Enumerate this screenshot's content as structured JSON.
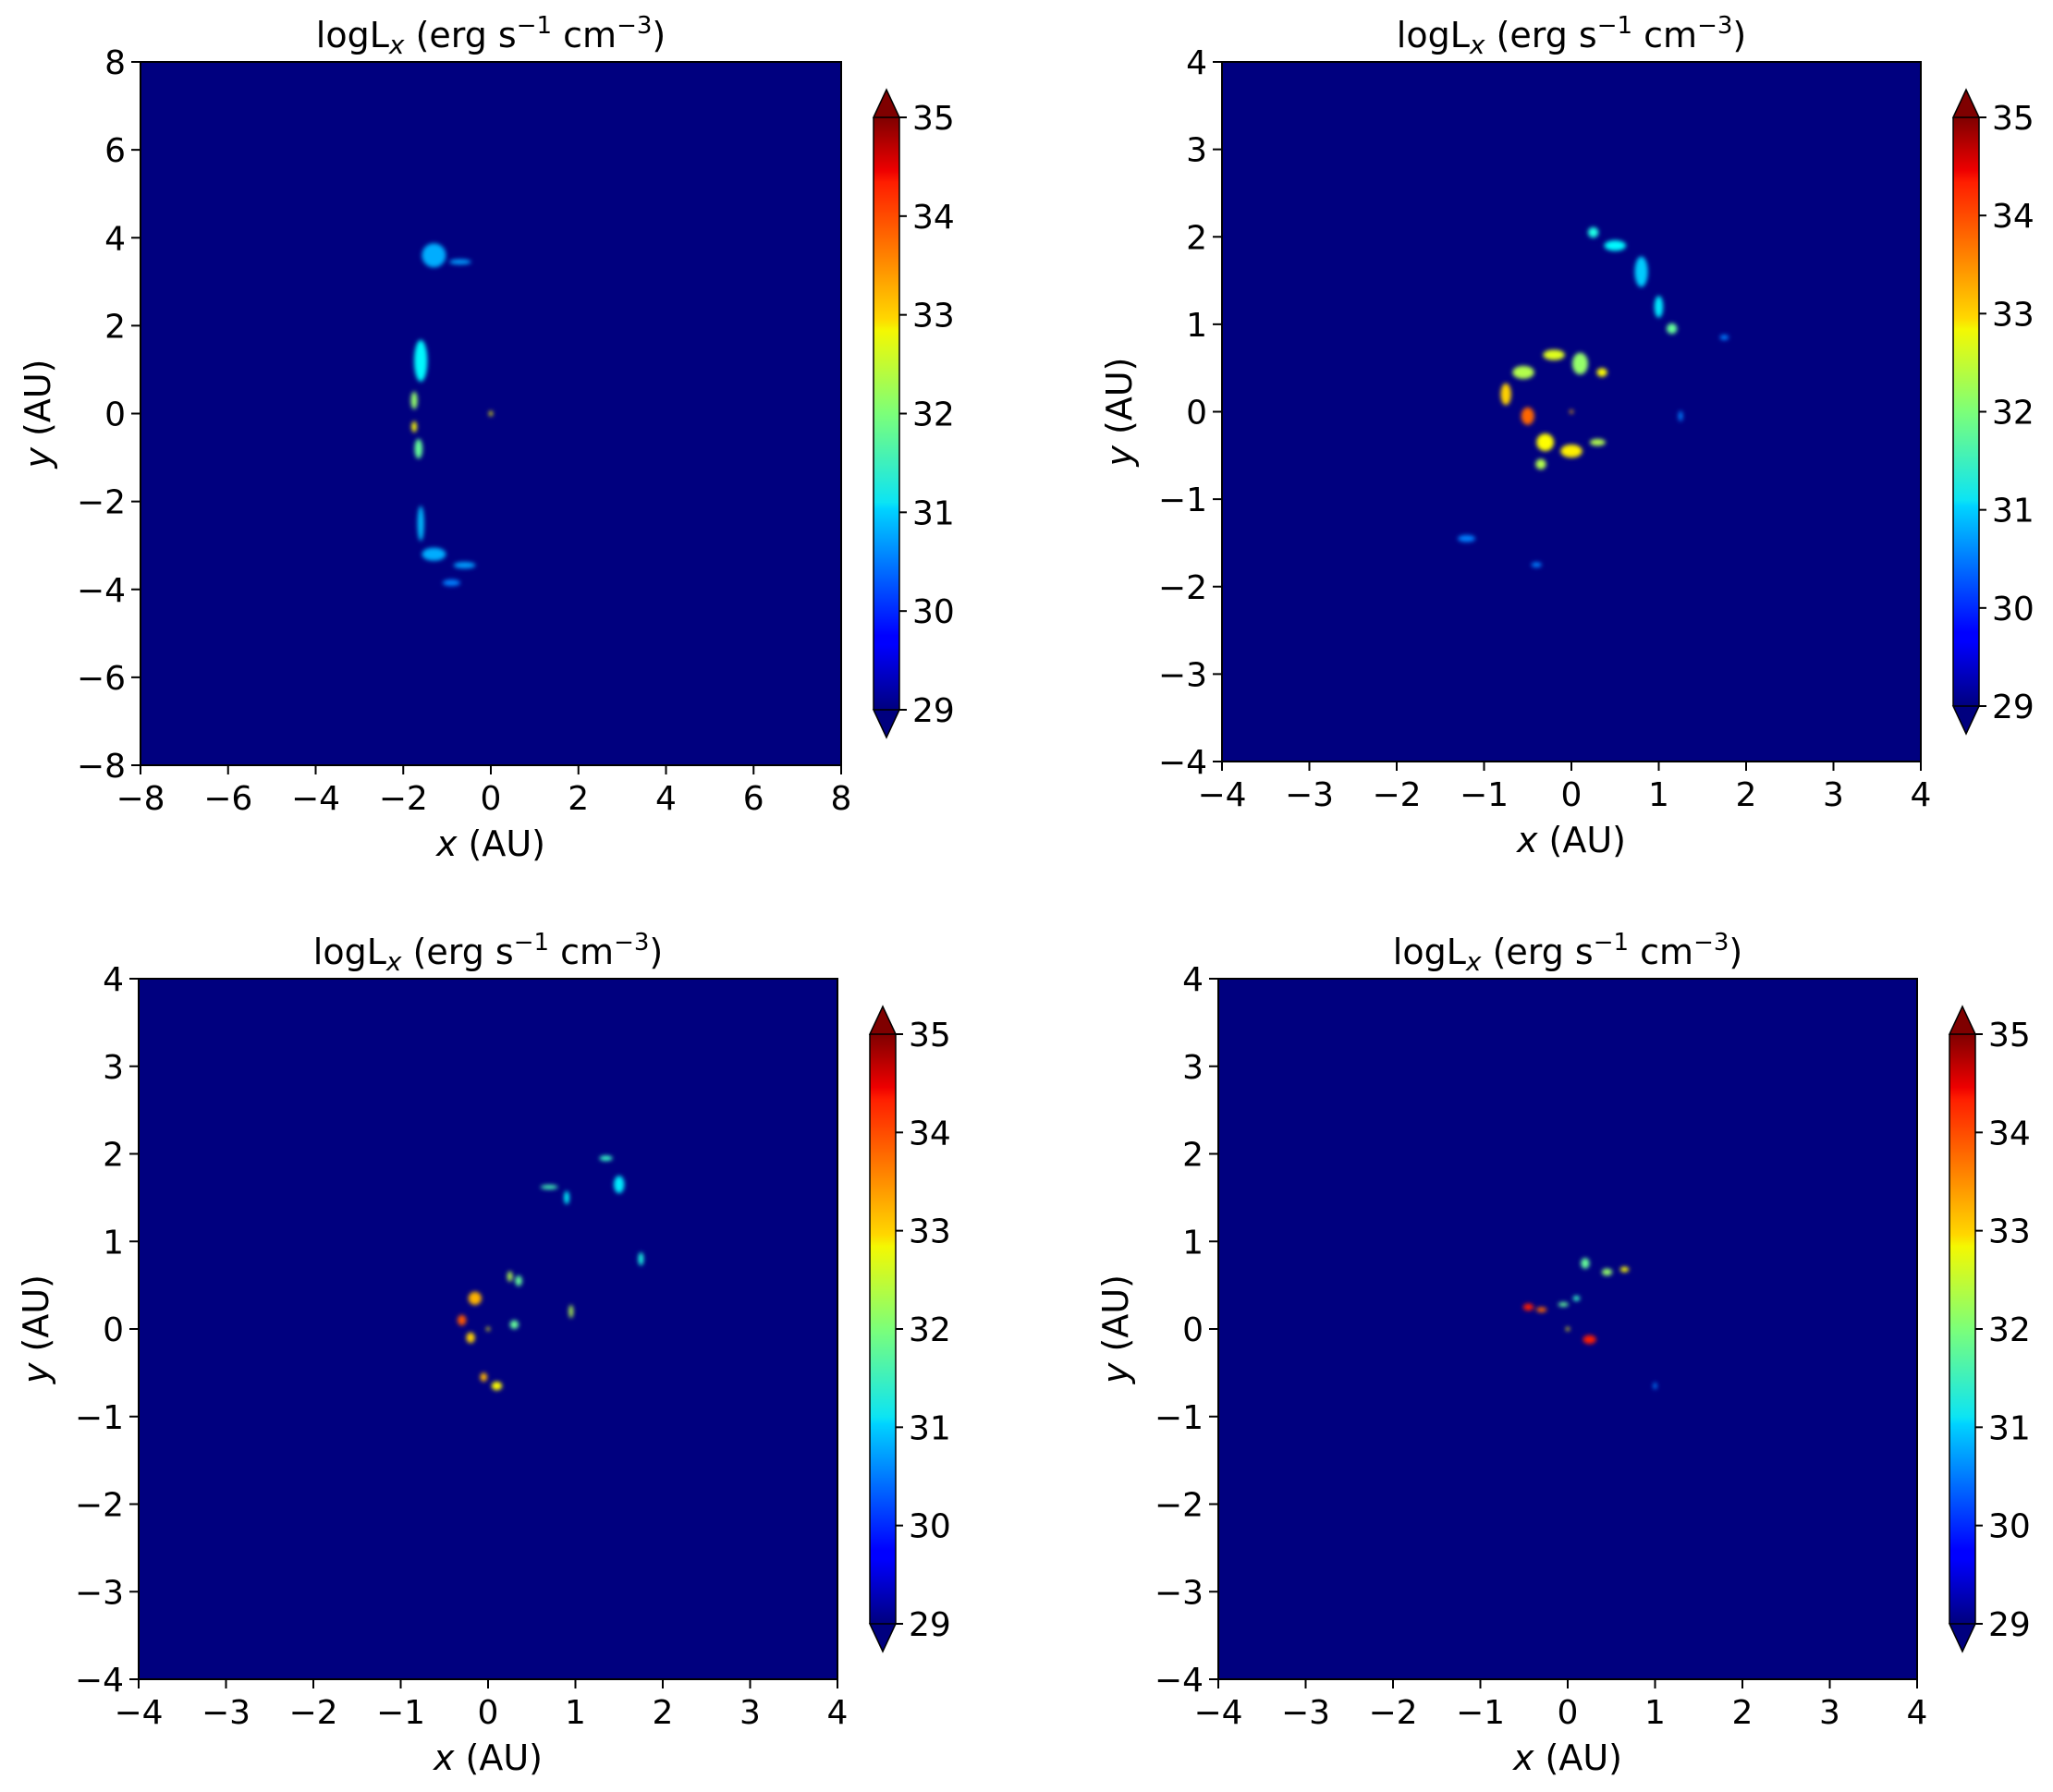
{
  "chart_data": [
    {
      "type": "heatmap",
      "title": "logL",
      "title_sub": "x",
      "title_units": "(erg s",
      "title_exp1": "−1",
      "title_units2": " cm",
      "title_exp2": "−3",
      "title_close": ")",
      "xlabel_var": "x",
      "xlabel_unit": " (AU)",
      "ylabel_var": "y",
      "ylabel_unit": " (AU)",
      "xlim": [
        -8,
        8
      ],
      "ylim": [
        -8,
        8
      ],
      "xticks": [
        "−8",
        "−6",
        "−4",
        "−2",
        "0",
        "2",
        "4",
        "6",
        "8"
      ],
      "yticks": [
        "−8",
        "−6",
        "−4",
        "−2",
        "0",
        "2",
        "4",
        "6",
        "8"
      ],
      "colorbar": {
        "ticks": [
          "29",
          "30",
          "31",
          "32",
          "33",
          "34",
          "35"
        ],
        "range": [
          29,
          35
        ],
        "extend": "both",
        "colormap": "jet"
      },
      "background_value": 29,
      "features": [
        {
          "x": -1.3,
          "y": 3.6,
          "w": 0.55,
          "h": 0.55,
          "v": 30.3
        },
        {
          "x": -0.7,
          "y": 3.45,
          "w": 0.5,
          "h": 0.12,
          "v": 30.2
        },
        {
          "x": -1.6,
          "y": 1.2,
          "w": 0.3,
          "h": 0.95,
          "v": 30.8
        },
        {
          "x": -1.75,
          "y": 0.3,
          "w": 0.15,
          "h": 0.4,
          "v": 31.8
        },
        {
          "x": -1.75,
          "y": -0.3,
          "w": 0.12,
          "h": 0.25,
          "v": 32.5
        },
        {
          "x": -1.65,
          "y": -0.8,
          "w": 0.18,
          "h": 0.45,
          "v": 31.5
        },
        {
          "x": -1.6,
          "y": -2.5,
          "w": 0.15,
          "h": 0.8,
          "v": 30.4
        },
        {
          "x": -1.3,
          "y": -3.2,
          "w": 0.55,
          "h": 0.3,
          "v": 30.3
        },
        {
          "x": -0.6,
          "y": -3.45,
          "w": 0.5,
          "h": 0.15,
          "v": 30.2
        },
        {
          "x": -0.9,
          "y": -3.85,
          "w": 0.4,
          "h": 0.15,
          "v": 30.0
        },
        {
          "x": 0.0,
          "y": 0.0,
          "w": 0.06,
          "h": 0.12,
          "v": 32.5
        }
      ]
    },
    {
      "type": "heatmap",
      "title": "logL",
      "title_sub": "x",
      "title_units": "(erg s",
      "title_exp1": "−1",
      "title_units2": " cm",
      "title_exp2": "−3",
      "title_close": ")",
      "xlabel_var": "x",
      "xlabel_unit": " (AU)",
      "ylabel_var": "y",
      "ylabel_unit": " (AU)",
      "xlim": [
        -4,
        4
      ],
      "ylim": [
        -4,
        4
      ],
      "xticks": [
        "−4",
        "−3",
        "−2",
        "−1",
        "0",
        "1",
        "2",
        "3",
        "4"
      ],
      "yticks": [
        "−4",
        "−3",
        "−2",
        "−1",
        "0",
        "1",
        "2",
        "3",
        "4"
      ],
      "colorbar": {
        "ticks": [
          "29",
          "30",
          "31",
          "32",
          "33",
          "34",
          "35"
        ],
        "range": [
          29,
          35
        ],
        "extend": "both",
        "colormap": "jet"
      },
      "background_value": 29,
      "features": [
        {
          "x": 0.25,
          "y": 2.05,
          "w": 0.12,
          "h": 0.12,
          "v": 31.0
        },
        {
          "x": 0.5,
          "y": 1.9,
          "w": 0.25,
          "h": 0.12,
          "v": 30.8
        },
        {
          "x": 0.8,
          "y": 1.6,
          "w": 0.15,
          "h": 0.35,
          "v": 30.5
        },
        {
          "x": 1.0,
          "y": 1.2,
          "w": 0.1,
          "h": 0.25,
          "v": 30.7
        },
        {
          "x": 1.15,
          "y": 0.95,
          "w": 0.12,
          "h": 0.12,
          "v": 31.5
        },
        {
          "x": -0.55,
          "y": 0.45,
          "w": 0.25,
          "h": 0.15,
          "v": 32.0
        },
        {
          "x": -0.2,
          "y": 0.65,
          "w": 0.25,
          "h": 0.12,
          "v": 32.3
        },
        {
          "x": 0.1,
          "y": 0.55,
          "w": 0.18,
          "h": 0.25,
          "v": 31.8
        },
        {
          "x": -0.75,
          "y": 0.2,
          "w": 0.12,
          "h": 0.25,
          "v": 32.8
        },
        {
          "x": -0.5,
          "y": -0.05,
          "w": 0.15,
          "h": 0.2,
          "v": 33.5
        },
        {
          "x": -0.3,
          "y": -0.35,
          "w": 0.2,
          "h": 0.2,
          "v": 32.5
        },
        {
          "x": -0.35,
          "y": -0.6,
          "w": 0.12,
          "h": 0.12,
          "v": 32.0
        },
        {
          "x": 0.0,
          "y": -0.45,
          "w": 0.25,
          "h": 0.15,
          "v": 32.6
        },
        {
          "x": 0.3,
          "y": -0.35,
          "w": 0.18,
          "h": 0.08,
          "v": 32.0
        },
        {
          "x": 0.35,
          "y": 0.45,
          "w": 0.12,
          "h": 0.1,
          "v": 32.5
        },
        {
          "x": 0.0,
          "y": 0.0,
          "w": 0.04,
          "h": 0.04,
          "v": 33.0
        },
        {
          "x": -1.2,
          "y": -1.45,
          "w": 0.2,
          "h": 0.08,
          "v": 30.0
        },
        {
          "x": -0.4,
          "y": -1.75,
          "w": 0.12,
          "h": 0.06,
          "v": 30.0
        },
        {
          "x": 1.25,
          "y": -0.05,
          "w": 0.05,
          "h": 0.12,
          "v": 30.0
        },
        {
          "x": 1.75,
          "y": 0.85,
          "w": 0.1,
          "h": 0.06,
          "v": 30.0
        }
      ]
    },
    {
      "type": "heatmap",
      "title": "logL",
      "title_sub": "x",
      "title_units": "(erg s",
      "title_exp1": "−1",
      "title_units2": " cm",
      "title_exp2": "−3",
      "title_close": ")",
      "xlabel_var": "x",
      "xlabel_unit": " (AU)",
      "ylabel_var": "y",
      "ylabel_unit": " (AU)",
      "xlim": [
        -4,
        4
      ],
      "ylim": [
        -4,
        4
      ],
      "xticks": [
        "−4",
        "−3",
        "−2",
        "−1",
        "0",
        "1",
        "2",
        "3",
        "4"
      ],
      "yticks": [
        "−4",
        "−3",
        "−2",
        "−1",
        "0",
        "1",
        "2",
        "3",
        "4"
      ],
      "colorbar": {
        "ticks": [
          "29",
          "30",
          "31",
          "32",
          "33",
          "34",
          "35"
        ],
        "range": [
          29,
          35
        ],
        "extend": "both",
        "colormap": "jet"
      },
      "background_value": 29,
      "features": [
        {
          "x": 0.7,
          "y": 1.62,
          "w": 0.2,
          "h": 0.05,
          "v": 31.3
        },
        {
          "x": 0.9,
          "y": 1.5,
          "w": 0.06,
          "h": 0.15,
          "v": 30.8
        },
        {
          "x": 1.35,
          "y": 1.95,
          "w": 0.15,
          "h": 0.06,
          "v": 31.2
        },
        {
          "x": 1.5,
          "y": 1.65,
          "w": 0.12,
          "h": 0.2,
          "v": 30.7
        },
        {
          "x": 1.75,
          "y": 0.8,
          "w": 0.06,
          "h": 0.15,
          "v": 31.0
        },
        {
          "x": 0.25,
          "y": 0.6,
          "w": 0.06,
          "h": 0.12,
          "v": 32.0
        },
        {
          "x": -0.15,
          "y": 0.35,
          "w": 0.15,
          "h": 0.15,
          "v": 33.0
        },
        {
          "x": -0.3,
          "y": 0.1,
          "w": 0.1,
          "h": 0.12,
          "v": 33.6
        },
        {
          "x": -0.2,
          "y": -0.1,
          "w": 0.1,
          "h": 0.12,
          "v": 32.8
        },
        {
          "x": 0.35,
          "y": 0.55,
          "w": 0.08,
          "h": 0.12,
          "v": 31.5
        },
        {
          "x": 0.3,
          "y": 0.05,
          "w": 0.1,
          "h": 0.1,
          "v": 31.5
        },
        {
          "x": 0.1,
          "y": -0.65,
          "w": 0.12,
          "h": 0.1,
          "v": 32.5
        },
        {
          "x": -0.05,
          "y": -0.55,
          "w": 0.08,
          "h": 0.1,
          "v": 33.0
        },
        {
          "x": 0.95,
          "y": 0.2,
          "w": 0.05,
          "h": 0.15,
          "v": 32.0
        },
        {
          "x": 0.0,
          "y": 0.0,
          "w": 0.03,
          "h": 0.03,
          "v": 32.5
        }
      ]
    },
    {
      "type": "heatmap",
      "title": "logL",
      "title_sub": "x",
      "title_units": "(erg s",
      "title_exp1": "−1",
      "title_units2": " cm",
      "title_exp2": "−3",
      "title_close": ")",
      "xlabel_var": "x",
      "xlabel_unit": " (AU)",
      "ylabel_var": "y",
      "ylabel_unit": " (AU)",
      "xlim": [
        -4,
        4
      ],
      "ylim": [
        -4,
        4
      ],
      "xticks": [
        "−4",
        "−3",
        "−2",
        "−1",
        "0",
        "1",
        "2",
        "3",
        "4"
      ],
      "yticks": [
        "−4",
        "−3",
        "−2",
        "−1",
        "0",
        "1",
        "2",
        "3",
        "4"
      ],
      "colorbar": {
        "ticks": [
          "29",
          "30",
          "31",
          "32",
          "33",
          "34",
          "35"
        ],
        "range": [
          29,
          35
        ],
        "extend": "both",
        "colormap": "jet"
      },
      "background_value": 29,
      "features": [
        {
          "x": -0.45,
          "y": 0.25,
          "w": 0.12,
          "h": 0.08,
          "v": 34.0
        },
        {
          "x": -0.3,
          "y": 0.22,
          "w": 0.12,
          "h": 0.06,
          "v": 33.5
        },
        {
          "x": -0.05,
          "y": 0.28,
          "w": 0.12,
          "h": 0.05,
          "v": 31.5
        },
        {
          "x": 0.1,
          "y": 0.35,
          "w": 0.08,
          "h": 0.06,
          "v": 31.2
        },
        {
          "x": 0.2,
          "y": 0.75,
          "w": 0.1,
          "h": 0.12,
          "v": 31.5
        },
        {
          "x": 0.45,
          "y": 0.65,
          "w": 0.12,
          "h": 0.08,
          "v": 31.8
        },
        {
          "x": 0.65,
          "y": 0.68,
          "w": 0.1,
          "h": 0.06,
          "v": 32.5
        },
        {
          "x": 0.25,
          "y": -0.12,
          "w": 0.15,
          "h": 0.1,
          "v": 34.0
        },
        {
          "x": 0.0,
          "y": 0.0,
          "w": 0.03,
          "h": 0.03,
          "v": 32.5
        },
        {
          "x": 1.0,
          "y": -0.65,
          "w": 0.03,
          "h": 0.08,
          "v": 30.0
        }
      ]
    }
  ]
}
